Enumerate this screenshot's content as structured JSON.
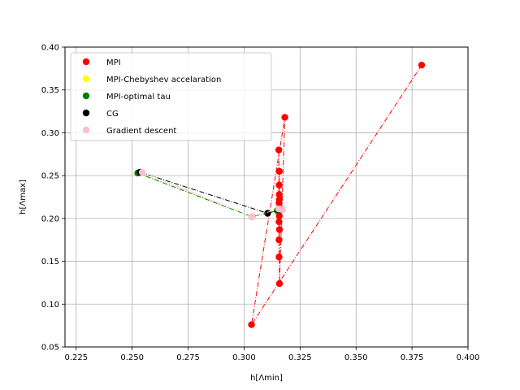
{
  "chart_data": {
    "type": "scatter",
    "xlabel": "h[Λmin]",
    "ylabel": "h[Λmax]",
    "xlim": [
      0.22,
      0.4
    ],
    "ylim": [
      0.05,
      0.4
    ],
    "xticks": [
      0.225,
      0.25,
      0.275,
      0.3,
      0.325,
      0.35,
      0.375,
      0.4
    ],
    "xtick_labels": [
      "0.225",
      "0.250",
      "0.275",
      "0.300",
      "0.325",
      "0.350",
      "0.375",
      "0.400"
    ],
    "yticks": [
      0.05,
      0.1,
      0.15,
      0.2,
      0.25,
      0.3,
      0.35,
      0.4
    ],
    "ytick_labels": [
      "0.05",
      "0.10",
      "0.15",
      "0.20",
      "0.25",
      "0.30",
      "0.35",
      "0.40"
    ],
    "grid": true,
    "legend_position": "top-left",
    "series": [
      {
        "name": "MPI",
        "color": "#ff0000",
        "x": [
          0.3793,
          0.3033,
          0.3182,
          0.3158,
          0.3155,
          0.3156,
          0.3157,
          0.3156,
          0.3157,
          0.3158,
          0.3157,
          0.3156,
          0.3157,
          0.3157,
          0.3156,
          0.3155
        ],
        "y": [
          0.379,
          0.076,
          0.318,
          0.124,
          0.28,
          0.155,
          0.255,
          0.175,
          0.239,
          0.187,
          0.228,
          0.196,
          0.222,
          0.203,
          0.218,
          0.208
        ]
      },
      {
        "name": "MPI-Chebyshev accelaration",
        "color": "#ffff00",
        "x": [
          0.2525,
          0.3035,
          0.3148,
          0.3152
        ],
        "y": [
          0.253,
          0.202,
          0.209,
          0.21
        ]
      },
      {
        "name": "MPI-optimal tau",
        "color": "#008000",
        "x": [
          0.2525,
          0.3035,
          0.3148,
          0.3152
        ],
        "y": [
          0.253,
          0.202,
          0.209,
          0.21
        ]
      },
      {
        "name": "CG",
        "color": "#000000",
        "x": [
          0.2535,
          0.3105,
          0.3155
        ],
        "y": [
          0.254,
          0.206,
          0.21
        ]
      },
      {
        "name": "Gradient descent",
        "color": "#ffc0cb",
        "x": [
          0.2545,
          0.3035,
          0.3155,
          0.3172
        ],
        "y": [
          0.254,
          0.202,
          0.211,
          0.21
        ]
      }
    ]
  }
}
